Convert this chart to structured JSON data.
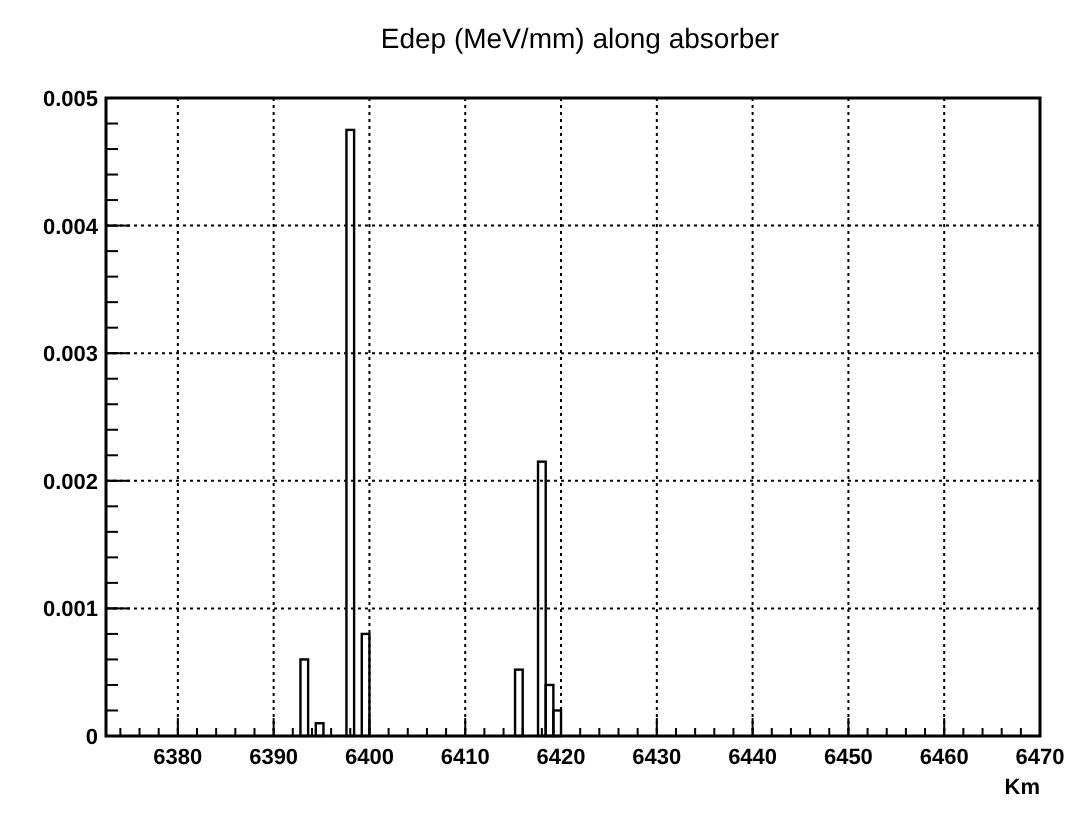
{
  "chart_data": {
    "type": "histogram",
    "title": "Edep (MeV/mm) along absorber",
    "xlabel": "Km",
    "bins": [
      6392.8,
      6393.6,
      6394.4,
      6395.2,
      6396.0,
      6396.8,
      6397.6,
      6398.4,
      6399.2,
      6400.0,
      6400.8,
      6401.6,
      6402.4,
      6403.2,
      6404.0,
      6404.8,
      6405.6,
      6406.4,
      6407.2,
      6408.0,
      6408.8,
      6409.6,
      6410.4,
      6411.2,
      6412.0,
      6412.8,
      6413.6,
      6414.4,
      6415.2,
      6416.0,
      6416.8,
      6417.6,
      6418.4,
      6419.2,
      6420.0
    ],
    "values": [
      0.0006,
      0,
      0.0001,
      0,
      0,
      0,
      0.00475,
      0,
      0.0008,
      0,
      0,
      0,
      0,
      0,
      0,
      0,
      0,
      0,
      0,
      0,
      0,
      0,
      0,
      0,
      0,
      0,
      0,
      0,
      0.00052,
      0,
      0,
      0.00215,
      0.0004,
      0.0002
    ],
    "color": "#000000",
    "xlim": [
      6372.5,
      6470
    ],
    "xticks": [
      6380,
      6390,
      6400,
      6410,
      6420,
      6430,
      6440,
      6450,
      6460,
      6470
    ],
    "ylim": [
      0,
      0.005
    ],
    "yticks": [
      0,
      0.001,
      0.002,
      0.003,
      0.004,
      0.005
    ],
    "grid": true
  }
}
